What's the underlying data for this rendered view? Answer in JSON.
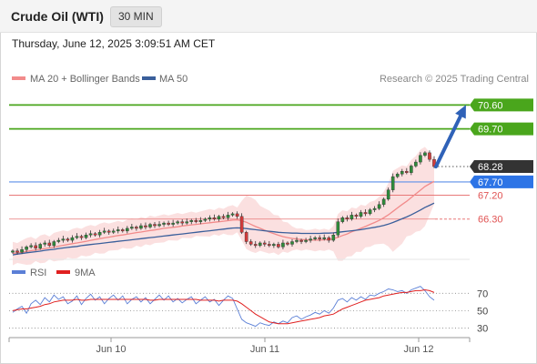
{
  "header": {
    "title": "Crude Oil (WTI)",
    "interval": "30 MIN",
    "datetime": "Thursday, June 12, 2025 3:09:51 AM CET"
  },
  "legend": {
    "items": [
      {
        "label": "MA 20 + Bollinger Bands",
        "color": "#f28b8b"
      },
      {
        "label": "MA 50",
        "color": "#3a5f9b"
      }
    ],
    "source": "Research © 2025 Trading Central"
  },
  "rsi_legend": {
    "items": [
      {
        "label": "RSI",
        "color": "#5b7fd6"
      },
      {
        "label": "9MA",
        "color": "#e02020"
      }
    ]
  },
  "chart_data": [
    {
      "type": "line",
      "panel": "price",
      "x_ticks": [
        "Jun 10",
        "Jun 11",
        "Jun 12"
      ],
      "ylim": [
        64.85,
        71.3
      ],
      "levels": [
        {
          "value": 70.6,
          "label": "70.60",
          "kind": "resistance",
          "color": "#4aa61c"
        },
        {
          "value": 69.7,
          "label": "69.70",
          "kind": "resistance",
          "color": "#4aa61c"
        },
        {
          "value": 68.28,
          "label": "68.28",
          "kind": "last-price",
          "color": "#333333"
        },
        {
          "value": 67.7,
          "label": "67.70",
          "kind": "pivot",
          "color": "#2d74e6"
        },
        {
          "value": 67.2,
          "label": "67.20",
          "kind": "support",
          "color": "#e05252"
        },
        {
          "value": 66.3,
          "label": "66.30",
          "kind": "support",
          "color": "#e05252"
        }
      ],
      "close": [
        65.1,
        65.05,
        65.15,
        65.25,
        65.3,
        65.2,
        65.35,
        65.4,
        65.3,
        65.45,
        65.5,
        65.55,
        65.5,
        65.6,
        65.65,
        65.6,
        65.7,
        65.75,
        65.7,
        65.8,
        65.85,
        65.8,
        65.85,
        65.9,
        65.85,
        65.95,
        66.0,
        65.95,
        66.05,
        66.0,
        66.1,
        66.05,
        66.1,
        66.15,
        66.1,
        66.15,
        66.2,
        66.15,
        66.2,
        66.25,
        66.2,
        66.25,
        66.3,
        66.35,
        66.3,
        66.4,
        66.35,
        66.45,
        66.5,
        66.4,
        65.8,
        65.45,
        65.35,
        65.3,
        65.4,
        65.35,
        65.3,
        65.35,
        65.25,
        65.4,
        65.35,
        65.45,
        65.5,
        65.45,
        65.5,
        65.55,
        65.6,
        65.55,
        65.6,
        65.5,
        65.7,
        66.2,
        66.35,
        66.3,
        66.45,
        66.4,
        66.55,
        66.5,
        66.65,
        66.7,
        66.85,
        67.05,
        67.4,
        67.9,
        68.0,
        68.1,
        68.05,
        68.3,
        68.45,
        68.7,
        68.8,
        68.55,
        68.28
      ],
      "ma20": [
        65.0,
        65.02,
        65.05,
        65.08,
        65.11,
        65.13,
        65.16,
        65.19,
        65.21,
        65.24,
        65.28,
        65.31,
        65.34,
        65.37,
        65.4,
        65.43,
        65.46,
        65.5,
        65.53,
        65.56,
        65.59,
        65.62,
        65.65,
        65.68,
        65.7,
        65.73,
        65.76,
        65.79,
        65.81,
        65.84,
        65.87,
        65.89,
        65.92,
        65.95,
        65.97,
        65.99,
        66.01,
        66.04,
        66.06,
        66.08,
        66.1,
        66.12,
        66.14,
        66.16,
        66.18,
        66.2,
        66.22,
        66.24,
        66.26,
        66.27,
        66.24,
        66.18,
        66.1,
        66.02,
        65.95,
        65.88,
        65.81,
        65.75,
        65.69,
        65.64,
        65.6,
        65.57,
        65.55,
        65.53,
        65.52,
        65.51,
        65.51,
        65.51,
        65.52,
        65.52,
        65.56,
        65.61,
        65.68,
        65.74,
        65.82,
        65.88,
        65.95,
        66.02,
        66.1,
        66.17,
        66.25,
        66.35,
        66.46,
        66.59,
        66.72,
        66.85,
        66.97,
        67.11,
        67.25,
        67.39,
        67.53,
        67.63,
        67.72
      ],
      "ma50": [
        64.95,
        64.98,
        65.0,
        65.03,
        65.05,
        65.07,
        65.09,
        65.12,
        65.14,
        65.16,
        65.19,
        65.21,
        65.23,
        65.25,
        65.27,
        65.3,
        65.32,
        65.34,
        65.36,
        65.38,
        65.4,
        65.42,
        65.44,
        65.46,
        65.48,
        65.5,
        65.52,
        65.54,
        65.56,
        65.58,
        65.6,
        65.62,
        65.64,
        65.66,
        65.68,
        65.7,
        65.72,
        65.74,
        65.76,
        65.78,
        65.8,
        65.82,
        65.84,
        65.86,
        65.88,
        65.9,
        65.92,
        65.94,
        65.96,
        65.97,
        65.96,
        65.94,
        65.92,
        65.9,
        65.88,
        65.86,
        65.84,
        65.82,
        65.8,
        65.79,
        65.78,
        65.77,
        65.77,
        65.76,
        65.76,
        65.76,
        65.76,
        65.76,
        65.77,
        65.77,
        65.78,
        65.8,
        65.82,
        65.84,
        65.86,
        65.88,
        65.9,
        65.93,
        65.96,
        65.99,
        66.02,
        66.06,
        66.11,
        66.17,
        66.24,
        66.31,
        66.38,
        66.46,
        66.55,
        66.64,
        66.74,
        66.82,
        66.9
      ]
    },
    {
      "type": "line",
      "panel": "rsi",
      "ylim": [
        20,
        85
      ],
      "y_ticks": [
        70,
        50,
        30
      ],
      "series": [
        {
          "name": "RSI",
          "values": [
            48,
            52,
            55,
            47,
            58,
            62,
            57,
            65,
            60,
            68,
            63,
            66,
            58,
            61,
            67,
            57,
            64,
            69,
            62,
            66,
            58,
            64,
            68,
            62,
            67,
            58,
            63,
            66,
            60,
            65,
            58,
            63,
            68,
            62,
            67,
            60,
            64,
            59,
            63,
            66,
            58,
            62,
            66,
            60,
            63,
            56,
            62,
            67,
            64,
            52,
            40,
            36,
            34,
            32,
            36,
            34,
            33,
            37,
            35,
            38,
            36,
            42,
            44,
            40,
            43,
            45,
            48,
            46,
            50,
            47,
            53,
            62,
            64,
            60,
            65,
            62,
            66,
            63,
            68,
            67,
            70,
            72,
            75,
            74,
            72,
            73,
            70,
            74,
            76,
            78,
            73,
            66,
            62
          ]
        },
        {
          "name": "9MA",
          "values": [
            50,
            51,
            52,
            52,
            53,
            54,
            55,
            57,
            58,
            60,
            61,
            62,
            62,
            62,
            63,
            62,
            62,
            63,
            63,
            63,
            63,
            63,
            63,
            63,
            63,
            63,
            63,
            63,
            63,
            63,
            62,
            62,
            63,
            63,
            63,
            63,
            63,
            63,
            63,
            63,
            63,
            62,
            62,
            62,
            62,
            61,
            62,
            62,
            62,
            61,
            58,
            54,
            50,
            46,
            43,
            40,
            37,
            36,
            35,
            35,
            35,
            36,
            37,
            38,
            39,
            40,
            41,
            42,
            44,
            45,
            46,
            49,
            52,
            54,
            56,
            58,
            60,
            62,
            63,
            64,
            65,
            67,
            68,
            69,
            70,
            71,
            71,
            72,
            73,
            73,
            74,
            73,
            71
          ]
        }
      ]
    }
  ]
}
